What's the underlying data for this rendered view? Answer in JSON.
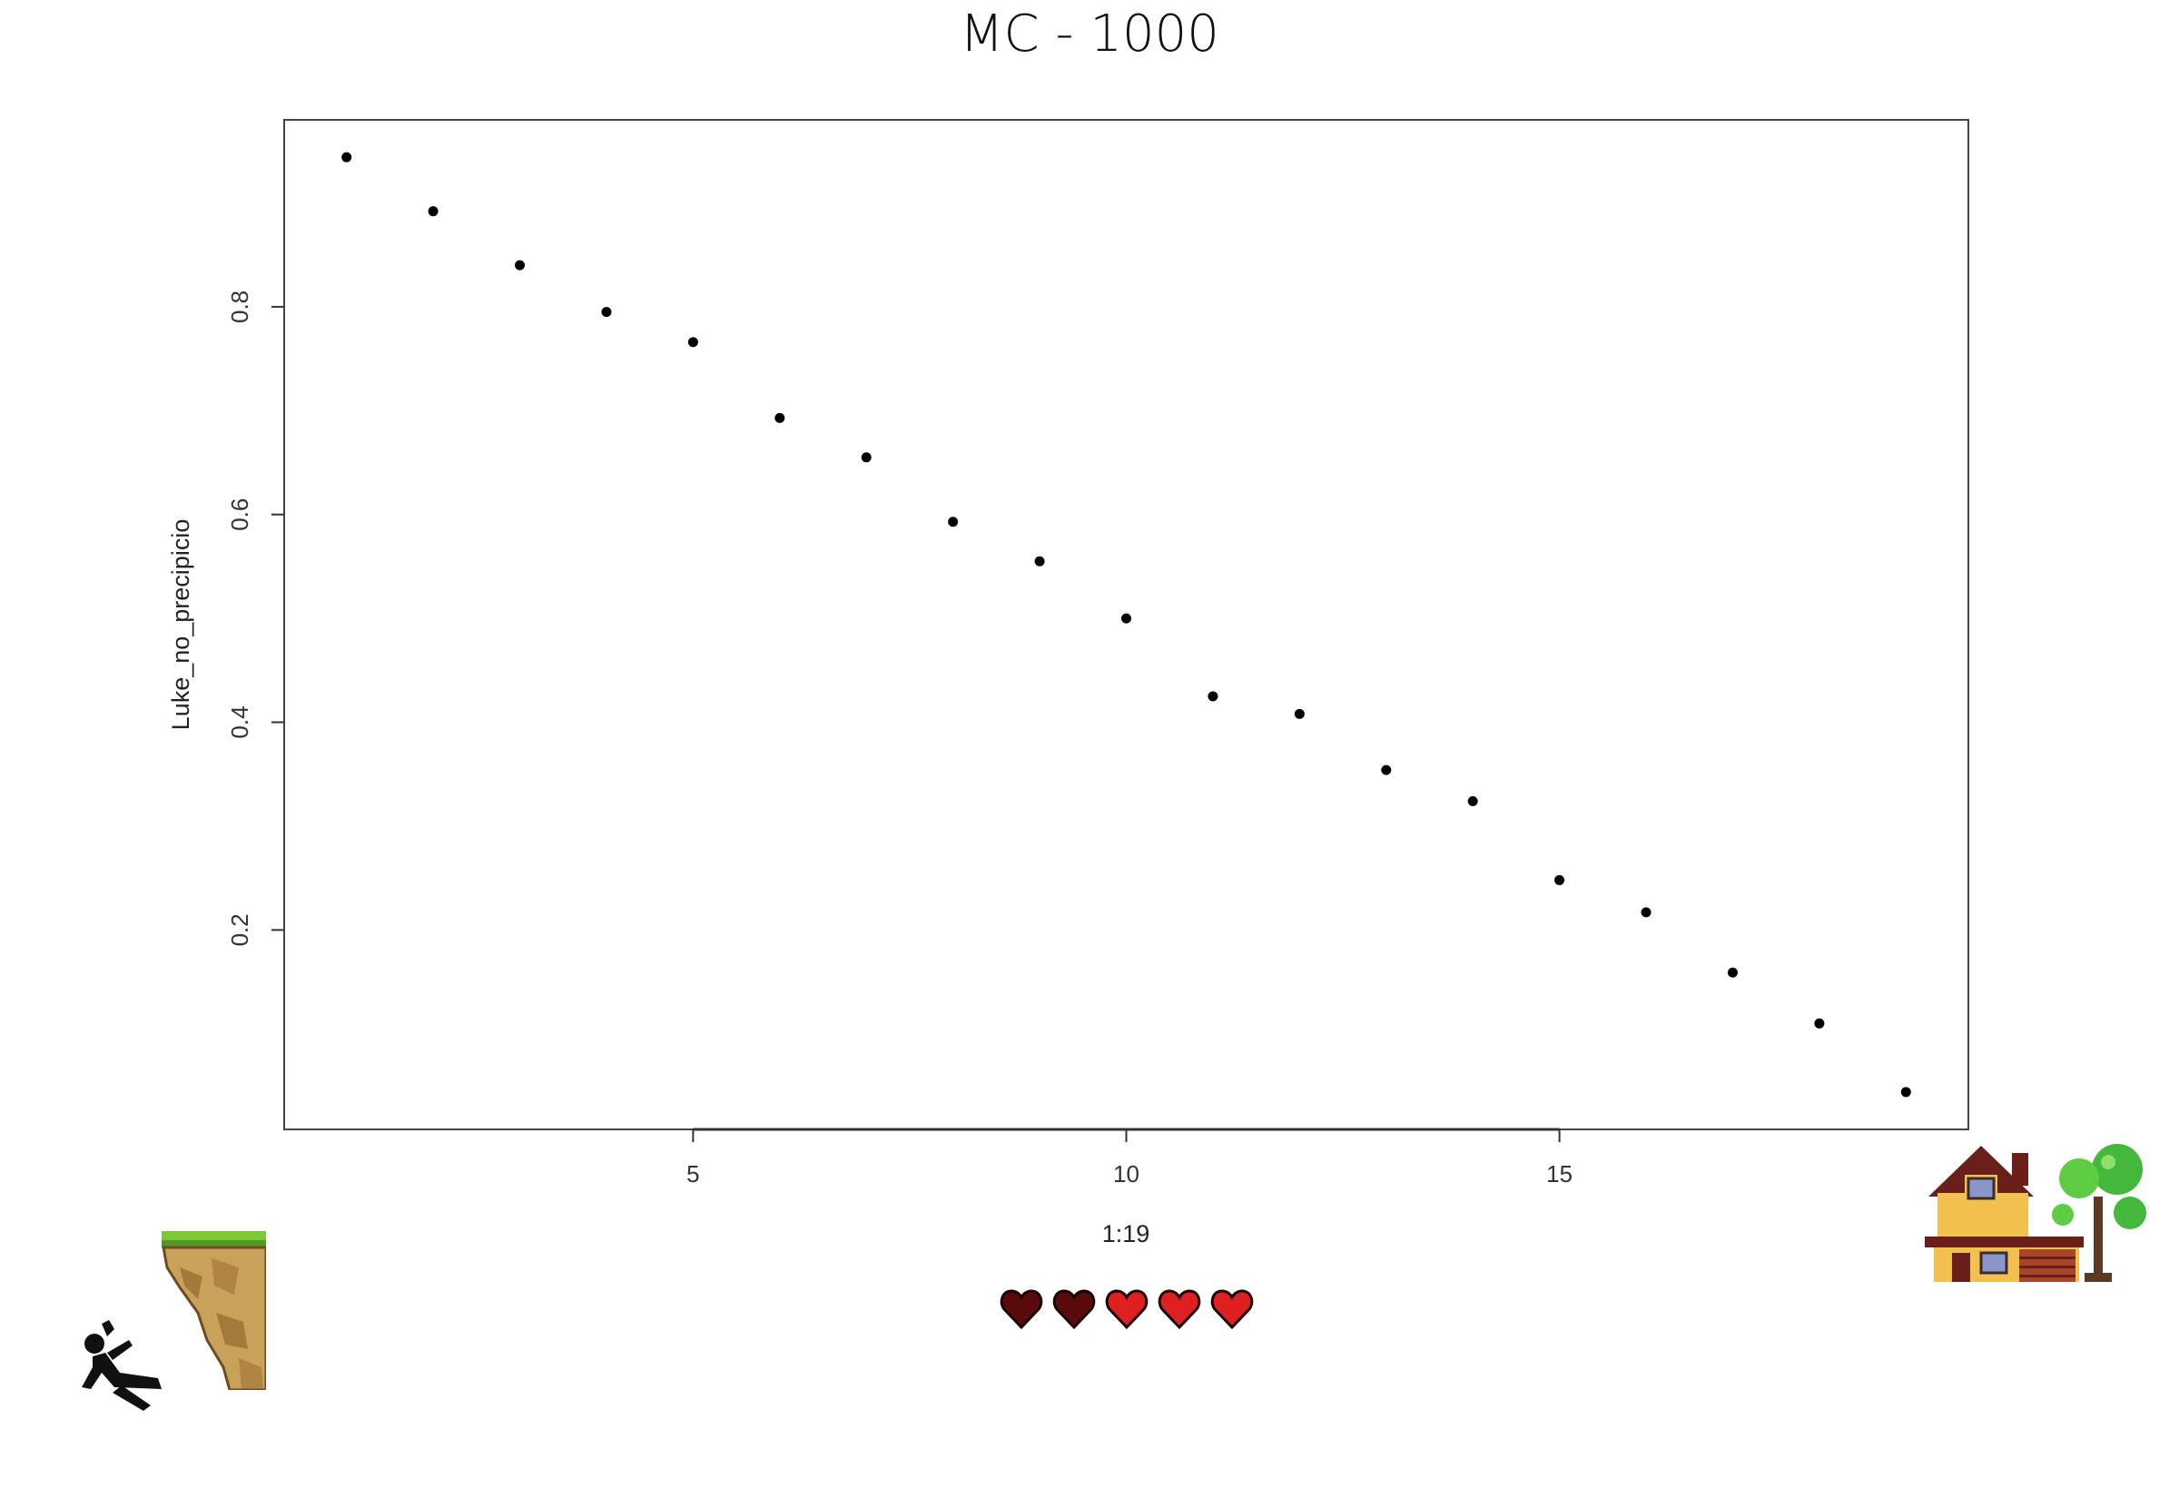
{
  "page": {
    "title": "MC - 1000"
  },
  "chart_data": {
    "type": "scatter",
    "title": "MC - 1000",
    "xlabel": "1:19",
    "ylabel": "Luke_no_precipicio",
    "x": [
      1,
      2,
      3,
      4,
      5,
      6,
      7,
      8,
      9,
      10,
      11,
      12,
      13,
      14,
      15,
      16,
      17,
      18,
      19
    ],
    "y": [
      0.944,
      0.892,
      0.84,
      0.795,
      0.766,
      0.693,
      0.655,
      0.593,
      0.555,
      0.5,
      0.425,
      0.408,
      0.354,
      0.324,
      0.248,
      0.217,
      0.159,
      0.11,
      0.044
    ],
    "x_ticks": [
      "5",
      "10",
      "15"
    ],
    "y_ticks": [
      "0.2",
      "0.4",
      "0.6",
      "0.8"
    ],
    "xlim": [
      0.28,
      19.72
    ],
    "ylim": [
      0.008,
      0.98
    ],
    "grid": false,
    "point_color": "#000000"
  },
  "icons": {
    "falling_person": "falling-person-icon",
    "cliff": "cliff-icon",
    "hearts": "heart-icon",
    "house": "house-icon",
    "tree": "tree-icon"
  },
  "hearts": {
    "dark_color": "#5a0a0a",
    "bright_color": "#e02020"
  }
}
